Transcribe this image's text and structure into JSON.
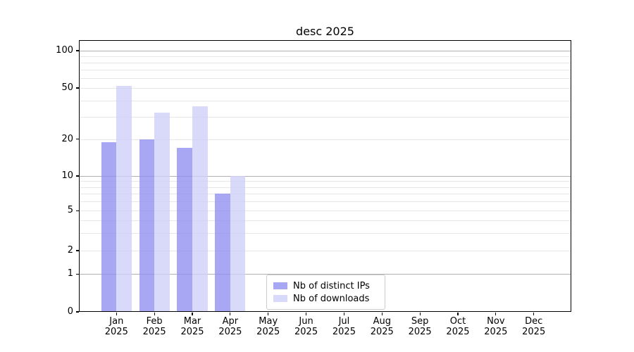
{
  "chart_data": {
    "type": "bar",
    "title": "desc 2025",
    "year_label": "2025",
    "categories": [
      "Jan",
      "Feb",
      "Mar",
      "Apr",
      "May",
      "Jun",
      "Jul",
      "Aug",
      "Sep",
      "Oct",
      "Nov",
      "Dec"
    ],
    "series": [
      {
        "name": "Nb of distinct IPs",
        "color": "rgba(145,145,240,0.8)",
        "values": [
          19,
          20,
          17,
          7,
          0,
          0,
          0,
          0,
          0,
          0,
          0,
          0
        ]
      },
      {
        "name": "Nb of downloads",
        "color": "rgba(208,208,247,0.8)",
        "values": [
          52,
          32,
          36,
          10,
          0,
          0,
          0,
          0,
          0,
          0,
          0,
          0
        ]
      }
    ],
    "xlabel": "",
    "ylabel": "",
    "yticks": [
      0,
      1,
      2,
      5,
      10,
      20,
      50,
      100
    ],
    "y_scale_anchors": [
      [
        0,
        1.0
      ],
      [
        1,
        0.8609
      ],
      [
        2,
        0.7746
      ],
      [
        5,
        0.6277
      ],
      [
        10,
        0.5
      ],
      [
        20,
        0.3645
      ],
      [
        50,
        0.1762
      ],
      [
        100,
        0.0389
      ]
    ],
    "grid_major_values": [
      1,
      10,
      100
    ],
    "grid_minor_values": [
      2,
      3,
      4,
      5,
      6,
      7,
      8,
      9,
      20,
      30,
      40,
      50,
      60,
      70,
      80,
      90
    ],
    "xlim": [
      -0.99,
      11.99
    ],
    "bar_width": 0.4,
    "grid": true,
    "legend_position": "lower center",
    "colors": {
      "grid_major": "#b0b0b0",
      "grid_minor": "#e6e6e6",
      "spine": "#000000",
      "background": "#ffffff"
    }
  }
}
